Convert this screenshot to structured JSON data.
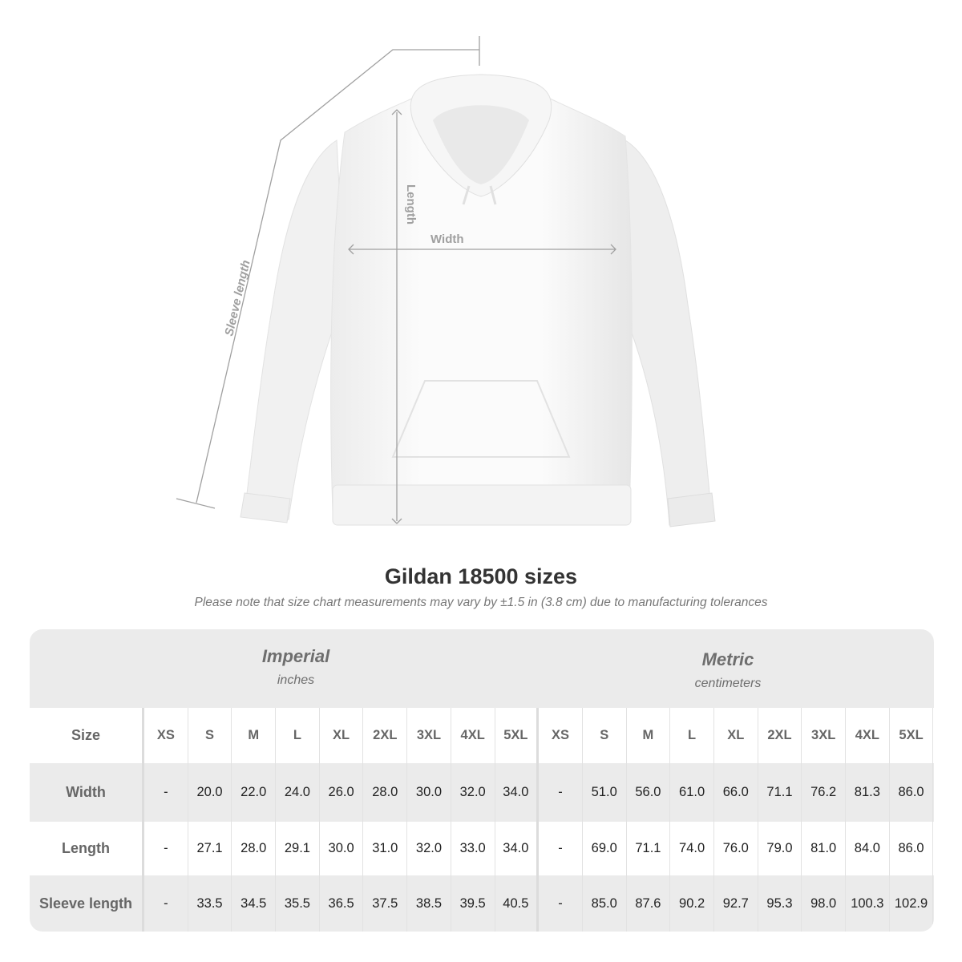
{
  "diagram": {
    "labels": {
      "sleeve": "Sleeve length",
      "length": "Length",
      "width": "Width"
    }
  },
  "title": "Gildan 18500 sizes",
  "note": "Please note that size chart measurements may vary by ±1.5 in (3.8 cm) due to manufacturing tolerances",
  "systems": {
    "imperial": {
      "name": "Imperial",
      "unit": "inches"
    },
    "metric": {
      "name": "Metric",
      "unit": "centimeters"
    }
  },
  "table": {
    "size_label": "Size",
    "sizes": [
      "XS",
      "S",
      "M",
      "L",
      "XL",
      "2XL",
      "3XL",
      "4XL",
      "5XL"
    ],
    "rows": [
      {
        "label": "Width",
        "imperial": [
          "-",
          "20.0",
          "22.0",
          "24.0",
          "26.0",
          "28.0",
          "30.0",
          "32.0",
          "34.0"
        ],
        "metric": [
          "-",
          "51.0",
          "56.0",
          "61.0",
          "66.0",
          "71.1",
          "76.2",
          "81.3",
          "86.0"
        ]
      },
      {
        "label": "Length",
        "imperial": [
          "-",
          "27.1",
          "28.0",
          "29.1",
          "30.0",
          "31.0",
          "32.0",
          "33.0",
          "34.0"
        ],
        "metric": [
          "-",
          "69.0",
          "71.1",
          "74.0",
          "76.0",
          "79.0",
          "81.0",
          "84.0",
          "86.0"
        ]
      },
      {
        "label": "Sleeve length",
        "imperial": [
          "-",
          "33.5",
          "34.5",
          "35.5",
          "36.5",
          "37.5",
          "38.5",
          "39.5",
          "40.5"
        ],
        "metric": [
          "-",
          "85.0",
          "87.6",
          "90.2",
          "92.7",
          "95.3",
          "98.0",
          "100.3",
          "102.9"
        ]
      }
    ]
  },
  "colors": {
    "header_bg": "#ebebeb",
    "label_text": "#666666",
    "line": "#a0a0a0"
  }
}
